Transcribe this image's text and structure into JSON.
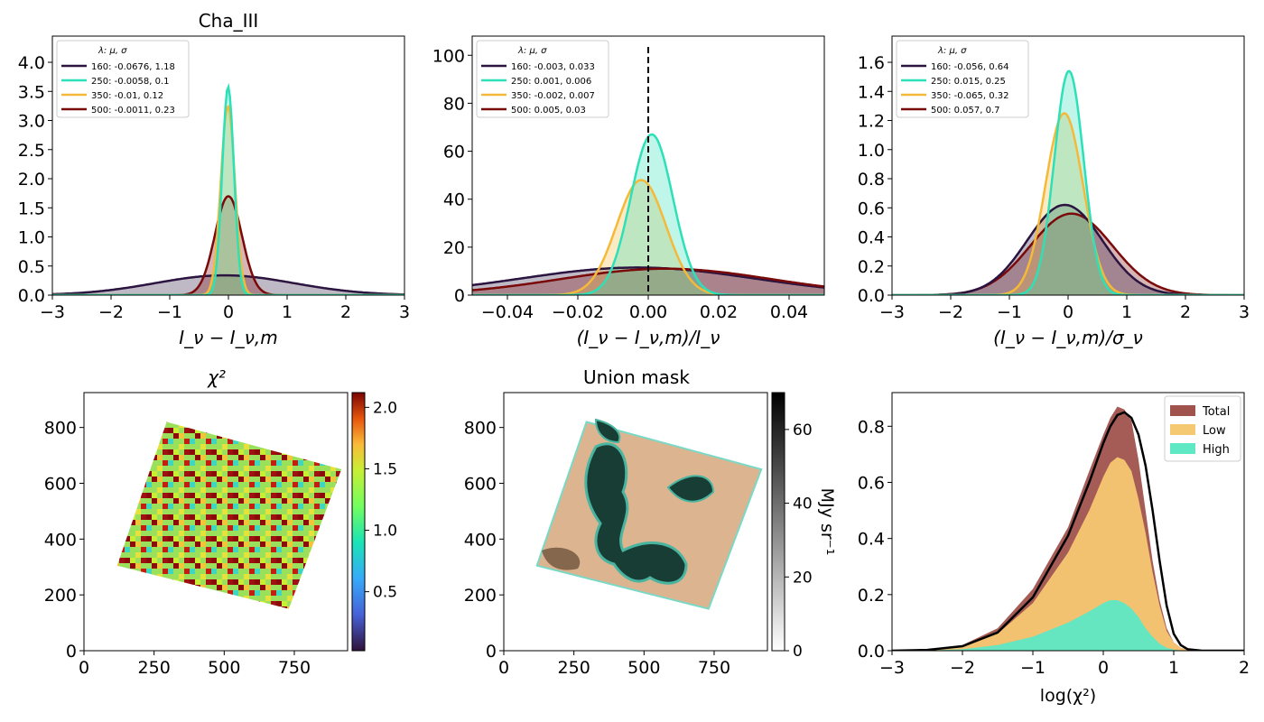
{
  "figure": {
    "panels": [
      {
        "id": "p1",
        "title": "Cha_III",
        "xlabel": "I_ν − I_ν,m"
      },
      {
        "id": "p2",
        "title": "",
        "xlabel": "(I_ν − I_ν,m)/I_ν"
      },
      {
        "id": "p3",
        "title": "",
        "xlabel": "(I_ν − I_ν,m)/σ_ν"
      },
      {
        "id": "p4",
        "title": "χ²",
        "xlabel": ""
      },
      {
        "id": "p5",
        "title": "Union mask",
        "xlabel": "",
        "colorbar_label": "MJy sr⁻¹"
      },
      {
        "id": "p6",
        "title": "",
        "xlabel": "log(χ²)"
      }
    ]
  },
  "chart_data": [
    {
      "type": "area",
      "panel": "p1",
      "title": "Cha_III",
      "xlabel": "I_ν − I_ν,m",
      "ylabel": "",
      "xlim": [
        -3,
        3
      ],
      "ylim": [
        0,
        4.45
      ],
      "xticks": [
        -3,
        -2,
        -1,
        0,
        1,
        2,
        3
      ],
      "yticks": [
        0.0,
        0.5,
        1.0,
        1.5,
        2.0,
        2.5,
        3.0,
        3.5,
        4.0
      ],
      "legend_header": "λ:        μ,        σ",
      "legend_position": "top-left",
      "series": [
        {
          "name": "160: -0.0676,  1.18",
          "mu": -0.0676,
          "sigma": 1.18,
          "peak": 0.34,
          "color": "#2b1540"
        },
        {
          "name": "250: -0.0058,  0.1",
          "mu": -0.0058,
          "sigma": 0.1,
          "peak": 3.58,
          "color": "#2de0b8"
        },
        {
          "name": "350: -0.01,  0.12",
          "mu": -0.01,
          "sigma": 0.12,
          "peak": 3.25,
          "color": "#f5b93a"
        },
        {
          "name": "500: -0.0011,  0.23",
          "mu": -0.0011,
          "sigma": 0.23,
          "peak": 1.7,
          "color": "#7a0a0a"
        }
      ]
    },
    {
      "type": "area",
      "panel": "p2",
      "title": "",
      "xlabel": "(I_ν − I_ν,m)/I_ν",
      "ylabel": "",
      "xlim": [
        -0.05,
        0.05
      ],
      "ylim": [
        0,
        108
      ],
      "xticks": [
        -0.04,
        -0.02,
        0.0,
        0.02,
        0.04
      ],
      "xticklabels": [
        "−0.04",
        "−0.02",
        "0.00",
        "0.02",
        "0.04"
      ],
      "yticks": [
        0,
        20,
        40,
        60,
        80,
        100
      ],
      "vline_x": 0.0,
      "legend_header": "λ:        μ,        σ",
      "legend_position": "top-left",
      "series": [
        {
          "name": "160: -0.003,  0.033",
          "mu": -0.003,
          "sigma": 0.033,
          "peak": 11.5,
          "color": "#2b1540"
        },
        {
          "name": "250: 0.001,  0.006",
          "mu": 0.001,
          "sigma": 0.006,
          "peak": 67,
          "color": "#2de0b8"
        },
        {
          "name": "350: -0.002,  0.007",
          "mu": -0.002,
          "sigma": 0.007,
          "peak": 48,
          "color": "#f5b93a"
        },
        {
          "name": "500: 0.005,  0.03",
          "mu": 0.005,
          "sigma": 0.03,
          "peak": 11,
          "color": "#7a0a0a"
        }
      ]
    },
    {
      "type": "area",
      "panel": "p3",
      "title": "",
      "xlabel": "(I_ν − I_ν,m)/σ_ν",
      "ylabel": "",
      "xlim": [
        -3,
        3
      ],
      "ylim": [
        0,
        1.78
      ],
      "xticks": [
        -3,
        -2,
        -1,
        0,
        1,
        2,
        3
      ],
      "yticks": [
        0.0,
        0.2,
        0.4,
        0.6,
        0.8,
        1.0,
        1.2,
        1.4,
        1.6
      ],
      "legend_header": "λ:        μ,        σ",
      "legend_position": "top-left",
      "series": [
        {
          "name": "160: -0.056,  0.64",
          "mu": -0.056,
          "sigma": 0.64,
          "peak": 0.62,
          "color": "#2b1540"
        },
        {
          "name": "250: 0.015,  0.25",
          "mu": 0.015,
          "sigma": 0.25,
          "peak": 1.54,
          "color": "#2de0b8"
        },
        {
          "name": "350: -0.065,  0.32",
          "mu": -0.065,
          "sigma": 0.32,
          "peak": 1.25,
          "color": "#f5b93a"
        },
        {
          "name": "500: 0.057,  0.7",
          "mu": 0.057,
          "sigma": 0.7,
          "peak": 0.56,
          "color": "#7a0a0a"
        }
      ]
    },
    {
      "type": "heatmap",
      "panel": "p4",
      "title": "χ²",
      "xlim": [
        0,
        940
      ],
      "ylim": [
        0,
        925
      ],
      "xticks": [
        0,
        250,
        500,
        750
      ],
      "yticks": [
        0,
        200,
        400,
        600,
        800
      ],
      "region_corners": [
        [
          295,
          820
        ],
        [
          918,
          650
        ],
        [
          730,
          150
        ],
        [
          118,
          305
        ]
      ],
      "colorbar": {
        "min": 0.02,
        "max": 2.12,
        "ticks": [
          0.5,
          1.0,
          1.5,
          2.0
        ],
        "colormap": "turbo"
      }
    },
    {
      "type": "heatmap",
      "panel": "p5",
      "title": "Union mask",
      "xlim": [
        0,
        940
      ],
      "ylim": [
        0,
        925
      ],
      "xticks": [
        0,
        250,
        500,
        750
      ],
      "yticks": [
        0,
        200,
        400,
        600,
        800
      ],
      "region_corners": [
        [
          295,
          820
        ],
        [
          918,
          650
        ],
        [
          730,
          150
        ],
        [
          118,
          305
        ]
      ],
      "colorbar": {
        "min": 0,
        "max": 70,
        "ticks": [
          0,
          20,
          40,
          60
        ],
        "label": "MJy sr⁻¹",
        "colormap": "gray_r"
      }
    },
    {
      "type": "area",
      "panel": "p6",
      "title": "",
      "xlabel": "log(χ²)",
      "ylabel": "",
      "xlim": [
        -3,
        2
      ],
      "ylim": [
        0,
        0.92
      ],
      "xticks": [
        -3,
        -2,
        -1,
        0,
        1,
        2
      ],
      "yticks": [
        0.0,
        0.2,
        0.4,
        0.6,
        0.8
      ],
      "legend_position": "top-right",
      "series": [
        {
          "name": "Total",
          "color": "#a0524d",
          "x": [
            -3,
            -2.5,
            -2,
            -1.5,
            -1,
            -0.5,
            -0.2,
            0,
            0.1,
            0.2,
            0.3,
            0.4,
            0.5,
            0.6,
            0.7,
            0.8,
            0.9,
            1.0,
            1.1,
            1.3
          ],
          "values": [
            0,
            0.005,
            0.02,
            0.08,
            0.22,
            0.44,
            0.64,
            0.77,
            0.83,
            0.87,
            0.86,
            0.82,
            0.68,
            0.5,
            0.32,
            0.18,
            0.08,
            0.03,
            0.01,
            0
          ]
        },
        {
          "name": "Low",
          "color": "#f5c872",
          "x": [
            -3,
            -2.5,
            -2,
            -1.5,
            -1,
            -0.5,
            -0.2,
            0,
            0.1,
            0.2,
            0.3,
            0.4,
            0.5,
            0.6,
            0.7,
            0.8,
            0.9,
            1.0,
            1.1,
            1.3
          ],
          "values": [
            0,
            0.004,
            0.015,
            0.06,
            0.17,
            0.35,
            0.5,
            0.62,
            0.67,
            0.69,
            0.68,
            0.64,
            0.54,
            0.42,
            0.28,
            0.16,
            0.07,
            0.03,
            0.01,
            0
          ]
        },
        {
          "name": "High",
          "color": "#5ee8c4",
          "x": [
            -3,
            -2.5,
            -2,
            -1.5,
            -1,
            -0.5,
            -0.2,
            0,
            0.1,
            0.2,
            0.3,
            0.4,
            0.5,
            0.6,
            0.7,
            0.8,
            0.9,
            1.0,
            1.1,
            1.3
          ],
          "values": [
            0,
            0.001,
            0.005,
            0.02,
            0.05,
            0.1,
            0.14,
            0.17,
            0.18,
            0.18,
            0.17,
            0.15,
            0.12,
            0.08,
            0.05,
            0.025,
            0.01,
            0.004,
            0.001,
            0
          ]
        },
        {
          "type": "line",
          "color": "#000000",
          "x": [
            -3,
            -2.5,
            -2,
            -1.5,
            -1,
            -0.5,
            -0.2,
            0,
            0.1,
            0.2,
            0.3,
            0.4,
            0.5,
            0.6,
            0.7,
            0.8,
            0.9,
            1.0,
            1.1,
            1.2,
            1.4,
            2.0
          ],
          "values": [
            0,
            0.003,
            0.016,
            0.065,
            0.19,
            0.41,
            0.6,
            0.74,
            0.8,
            0.84,
            0.85,
            0.83,
            0.77,
            0.66,
            0.5,
            0.32,
            0.16,
            0.06,
            0.02,
            0.005,
            0,
            0
          ]
        }
      ]
    }
  ]
}
